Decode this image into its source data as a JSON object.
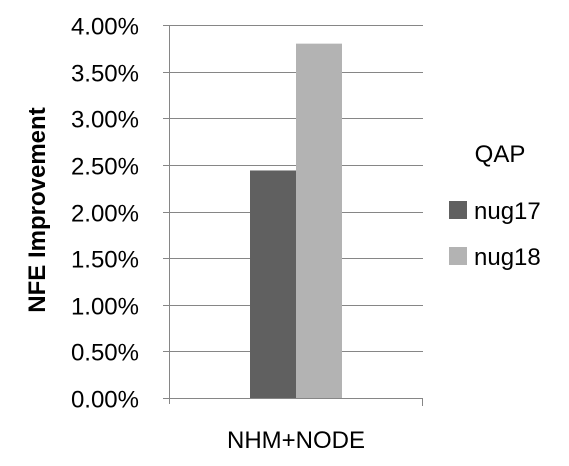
{
  "chart_data": {
    "type": "bar",
    "title": "",
    "xlabel": "",
    "ylabel": "NFE Improvement",
    "categories": [
      "NHM+NODE"
    ],
    "series": [
      {
        "name": "nug17",
        "values": [
          2.44
        ],
        "color": "#606060"
      },
      {
        "name": "nug18",
        "values": [
          3.8
        ],
        "color": "#b3b3b3"
      }
    ],
    "ylim": [
      0,
      4
    ],
    "ytick_step": 0.5,
    "y_unit": "%",
    "y_ticks": [
      "0.00%",
      "0.50%",
      "1.00%",
      "1.50%",
      "2.00%",
      "2.50%",
      "3.00%",
      "3.50%",
      "4.00%"
    ],
    "grid": true,
    "legend": {
      "title": "QAP",
      "position": "right"
    }
  }
}
